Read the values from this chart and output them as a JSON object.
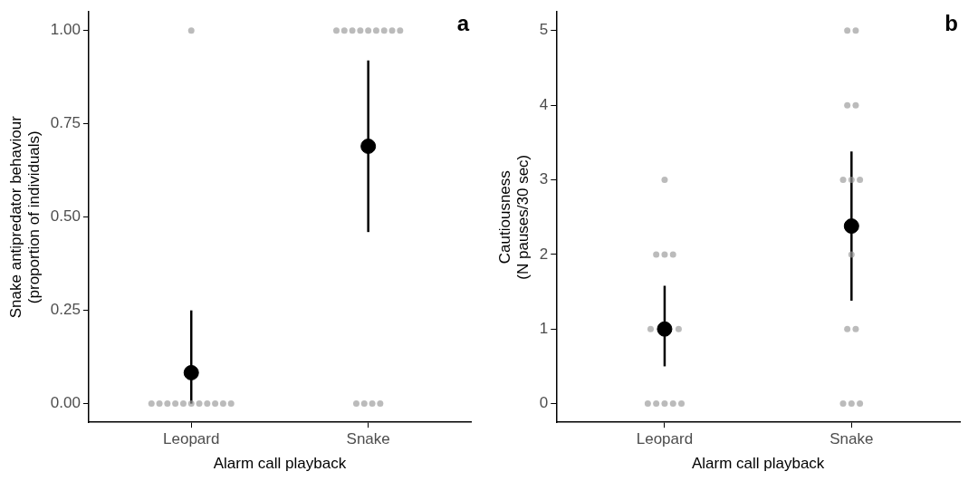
{
  "chart_data": [
    {
      "type": "scatter",
      "title": "a",
      "xlabel": "Alarm call playback",
      "ylabel": "Snake antipredator behaviour\n(proportion of individuals)",
      "categories": [
        "Leopard",
        "Snake"
      ],
      "ylim": [
        -0.05,
        1.05
      ],
      "yticks": [
        {
          "value": 0,
          "label": "0.00"
        },
        {
          "value": 0.25,
          "label": "0.25"
        },
        {
          "value": 0.5,
          "label": "0.50"
        },
        {
          "value": 0.75,
          "label": "0.75"
        },
        {
          "value": 1,
          "label": "1.00"
        }
      ],
      "grid": false,
      "legend": false,
      "series": [
        {
          "color": "#999999",
          "x": [
            "Leopard",
            "Leopard",
            "Leopard",
            "Leopard",
            "Leopard",
            "Leopard",
            "Leopard",
            "Leopard",
            "Leopard",
            "Leopard",
            "Leopard",
            "Leopard",
            "Snake",
            "Snake",
            "Snake",
            "Snake",
            "Snake",
            "Snake",
            "Snake",
            "Snake",
            "Snake",
            "Snake",
            "Snake",
            "Snake",
            "Snake"
          ],
          "values": [
            1,
            0,
            0,
            0,
            0,
            0,
            0,
            0,
            0,
            0,
            0,
            0,
            1,
            1,
            1,
            1,
            1,
            1,
            1,
            1,
            1,
            0,
            0,
            0,
            0
          ]
        },
        {
          "color": "#000000",
          "x": [
            "Leopard",
            "Snake"
          ],
          "values": [
            0.083,
            0.69
          ],
          "errors": [
            [
              0,
              0.25
            ],
            [
              0.46,
              0.92
            ]
          ]
        }
      ]
    },
    {
      "type": "scatter",
      "title": "b",
      "xlabel": "Alarm call playback",
      "ylabel": "Cautiousness\n(N pauses/30 sec)",
      "categories": [
        "Leopard",
        "Snake"
      ],
      "ylim": [
        -0.25,
        5.25
      ],
      "yticks": [
        0,
        1,
        2,
        3,
        4,
        5
      ],
      "grid": false,
      "legend": false,
      "series": [
        {
          "color": "#999999",
          "x": [
            "Leopard",
            "Leopard",
            "Leopard",
            "Leopard",
            "Leopard",
            "Leopard",
            "Leopard",
            "Leopard",
            "Leopard",
            "Leopard",
            "Leopard",
            "Snake",
            "Snake",
            "Snake",
            "Snake",
            "Snake",
            "Snake",
            "Snake",
            "Snake",
            "Snake",
            "Snake",
            "Snake",
            "Snake",
            "Snake"
          ],
          "values": [
            3,
            2,
            2,
            2,
            1,
            1,
            0,
            0,
            0,
            0,
            0,
            5,
            5,
            4,
            4,
            3,
            3,
            3,
            2,
            1,
            1,
            0,
            0,
            0
          ]
        },
        {
          "color": "#000000",
          "x": [
            "Leopard",
            "Snake"
          ],
          "values": [
            1.0,
            2.38
          ],
          "errors": [
            [
              0.5,
              1.58
            ],
            [
              1.38,
              3.38
            ]
          ]
        }
      ]
    }
  ]
}
